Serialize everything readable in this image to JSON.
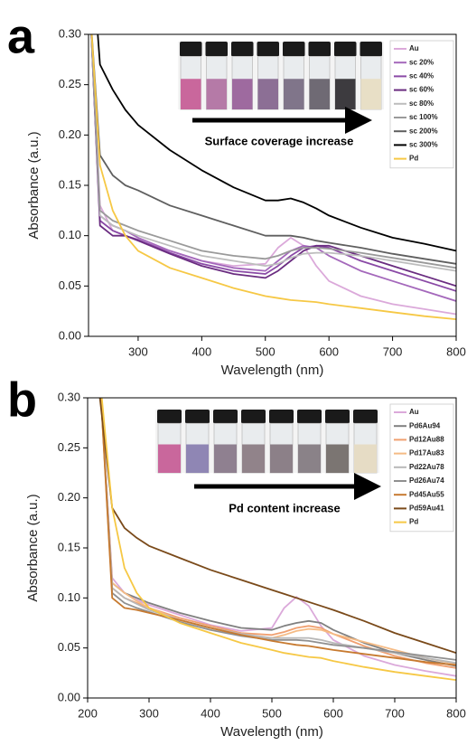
{
  "chart_data": [
    {
      "type": "line",
      "panel_label": "a",
      "xlabel": "Wavelength (nm)",
      "ylabel": "Absorbance (a.u.)",
      "annotation": "Surface coverage increase",
      "legend": "upper right",
      "xlim": [
        222,
        800
      ],
      "ylim": [
        0,
        0.3
      ],
      "xticks": [
        300,
        400,
        500,
        600,
        700,
        800
      ],
      "yticks": [
        {
          "value": 0,
          "label": "0.00"
        },
        {
          "value": 0.05,
          "label": "0.05"
        },
        {
          "value": 0.1,
          "label": "0.10"
        },
        {
          "value": 0.15,
          "label": "0.15"
        },
        {
          "value": 0.2,
          "label": "0.20"
        },
        {
          "value": 0.25,
          "label": "0.25"
        },
        {
          "value": 0.3,
          "label": "0.30"
        }
      ],
      "x": [
        225,
        240,
        260,
        280,
        300,
        350,
        400,
        450,
        500,
        520,
        540,
        560,
        580,
        600,
        650,
        700,
        750,
        800
      ],
      "series": [
        {
          "name": "Au",
          "color": "#dba9da",
          "values": [
            0.32,
            0.13,
            0.105,
            0.1,
            0.095,
            0.085,
            0.075,
            0.07,
            0.072,
            0.088,
            0.098,
            0.09,
            0.07,
            0.055,
            0.04,
            0.032,
            0.027,
            0.022
          ]
        },
        {
          "name": "sc 20%",
          "color": "#a468bb",
          "values": [
            0.32,
            0.12,
            0.11,
            0.105,
            0.098,
            0.085,
            0.075,
            0.068,
            0.065,
            0.075,
            0.085,
            0.09,
            0.088,
            0.08,
            0.065,
            0.055,
            0.045,
            0.035
          ]
        },
        {
          "name": "sc 40%",
          "color": "#8a4aa6",
          "values": [
            0.32,
            0.115,
            0.105,
            0.1,
            0.096,
            0.083,
            0.072,
            0.065,
            0.062,
            0.07,
            0.08,
            0.088,
            0.09,
            0.088,
            0.075,
            0.065,
            0.055,
            0.045
          ]
        },
        {
          "name": "sc 60%",
          "color": "#6a2c80",
          "values": [
            0.32,
            0.11,
            0.1,
            0.1,
            0.095,
            0.082,
            0.07,
            0.062,
            0.058,
            0.065,
            0.075,
            0.085,
            0.09,
            0.09,
            0.08,
            0.07,
            0.06,
            0.05
          ]
        },
        {
          "name": "sc 80%",
          "color": "#bdbdbd",
          "values": [
            0.32,
            0.12,
            0.11,
            0.105,
            0.1,
            0.09,
            0.08,
            0.075,
            0.07,
            0.072,
            0.078,
            0.082,
            0.083,
            0.083,
            0.08,
            0.075,
            0.07,
            0.065
          ]
        },
        {
          "name": "sc 100%",
          "color": "#9a9a9a",
          "values": [
            0.32,
            0.125,
            0.115,
            0.11,
            0.105,
            0.095,
            0.085,
            0.08,
            0.077,
            0.08,
            0.085,
            0.088,
            0.088,
            0.087,
            0.083,
            0.078,
            0.073,
            0.068
          ]
        },
        {
          "name": "sc 200%",
          "color": "#5f5f5f",
          "values": [
            0.32,
            0.18,
            0.16,
            0.15,
            0.145,
            0.13,
            0.12,
            0.11,
            0.1,
            0.1,
            0.1,
            0.098,
            0.095,
            0.093,
            0.088,
            0.082,
            0.077,
            0.072
          ]
        },
        {
          "name": "sc 300%",
          "color": "#000000",
          "values": [
            0.4,
            0.27,
            0.245,
            0.225,
            0.21,
            0.185,
            0.165,
            0.148,
            0.135,
            0.135,
            0.137,
            0.133,
            0.127,
            0.12,
            0.108,
            0.098,
            0.092,
            0.085
          ]
        },
        {
          "name": "Pd",
          "color": "#f6c845",
          "values": [
            0.32,
            0.17,
            0.125,
            0.1,
            0.085,
            0.068,
            0.058,
            0.048,
            0.04,
            0.038,
            0.036,
            0.035,
            0.034,
            0.032,
            0.028,
            0.024,
            0.02,
            0.017
          ]
        }
      ]
    },
    {
      "type": "line",
      "panel_label": "b",
      "xlabel": "Wavelength (nm)",
      "ylabel": "Absorbance (a.u.)",
      "annotation": "Pd content increase",
      "legend": "upper right",
      "xlim": [
        200,
        800
      ],
      "ylim": [
        0,
        0.3
      ],
      "xticks": [
        200,
        300,
        400,
        500,
        600,
        700,
        800
      ],
      "yticks": [
        {
          "value": 0,
          "label": "0.00"
        },
        {
          "value": 0.05,
          "label": "0.05"
        },
        {
          "value": 0.1,
          "label": "0.10"
        },
        {
          "value": 0.15,
          "label": "0.15"
        },
        {
          "value": 0.2,
          "label": "0.20"
        },
        {
          "value": 0.25,
          "label": "0.25"
        },
        {
          "value": 0.3,
          "label": "0.30"
        }
      ],
      "x": [
        220,
        240,
        260,
        280,
        300,
        350,
        400,
        450,
        500,
        520,
        540,
        560,
        580,
        600,
        650,
        700,
        750,
        800
      ],
      "series": [
        {
          "name": "Au",
          "color": "#dba9da",
          "values": [
            0.32,
            0.12,
            0.105,
            0.098,
            0.093,
            0.083,
            0.073,
            0.067,
            0.07,
            0.09,
            0.101,
            0.092,
            0.072,
            0.058,
            0.042,
            0.033,
            0.027,
            0.022
          ]
        },
        {
          "name": "Pd6Au94",
          "color": "#808080",
          "values": [
            0.32,
            0.115,
            0.105,
            0.1,
            0.095,
            0.085,
            0.077,
            0.07,
            0.068,
            0.072,
            0.075,
            0.077,
            0.075,
            0.068,
            0.055,
            0.045,
            0.038,
            0.032
          ]
        },
        {
          "name": "Pd12Au88",
          "color": "#f0a070",
          "values": [
            0.32,
            0.11,
            0.1,
            0.095,
            0.09,
            0.08,
            0.072,
            0.065,
            0.063,
            0.066,
            0.07,
            0.072,
            0.07,
            0.064,
            0.052,
            0.042,
            0.035,
            0.03
          ]
        },
        {
          "name": "Pd17Au83",
          "color": "#f5bb85",
          "values": [
            0.32,
            0.115,
            0.105,
            0.097,
            0.09,
            0.078,
            0.07,
            0.063,
            0.06,
            0.063,
            0.067,
            0.069,
            0.068,
            0.064,
            0.056,
            0.048,
            0.04,
            0.034
          ]
        },
        {
          "name": "Pd22Au78",
          "color": "#b8b8b8",
          "values": [
            0.32,
            0.11,
            0.1,
            0.094,
            0.088,
            0.078,
            0.07,
            0.064,
            0.06,
            0.06,
            0.06,
            0.06,
            0.058,
            0.055,
            0.05,
            0.045,
            0.04,
            0.035
          ]
        },
        {
          "name": "Pd26Au74",
          "color": "#909090",
          "values": [
            0.32,
            0.105,
            0.095,
            0.09,
            0.086,
            0.076,
            0.068,
            0.062,
            0.058,
            0.058,
            0.058,
            0.057,
            0.055,
            0.053,
            0.05,
            0.046,
            0.042,
            0.038
          ]
        },
        {
          "name": "Pd45Au55",
          "color": "#c77a30",
          "values": [
            0.32,
            0.1,
            0.09,
            0.088,
            0.085,
            0.078,
            0.07,
            0.063,
            0.057,
            0.055,
            0.053,
            0.052,
            0.05,
            0.048,
            0.044,
            0.04,
            0.036,
            0.033
          ]
        },
        {
          "name": "Pd59Au41",
          "color": "#7a4a1a",
          "values": [
            0.3,
            0.19,
            0.17,
            0.16,
            0.152,
            0.14,
            0.128,
            0.118,
            0.108,
            0.104,
            0.1,
            0.096,
            0.092,
            0.088,
            0.077,
            0.065,
            0.055,
            0.045
          ]
        },
        {
          "name": "Pd",
          "color": "#f6c845",
          "values": [
            0.32,
            0.19,
            0.13,
            0.105,
            0.09,
            0.075,
            0.065,
            0.055,
            0.048,
            0.045,
            0.043,
            0.041,
            0.04,
            0.037,
            0.031,
            0.026,
            0.022,
            0.018
          ]
        }
      ]
    }
  ]
}
